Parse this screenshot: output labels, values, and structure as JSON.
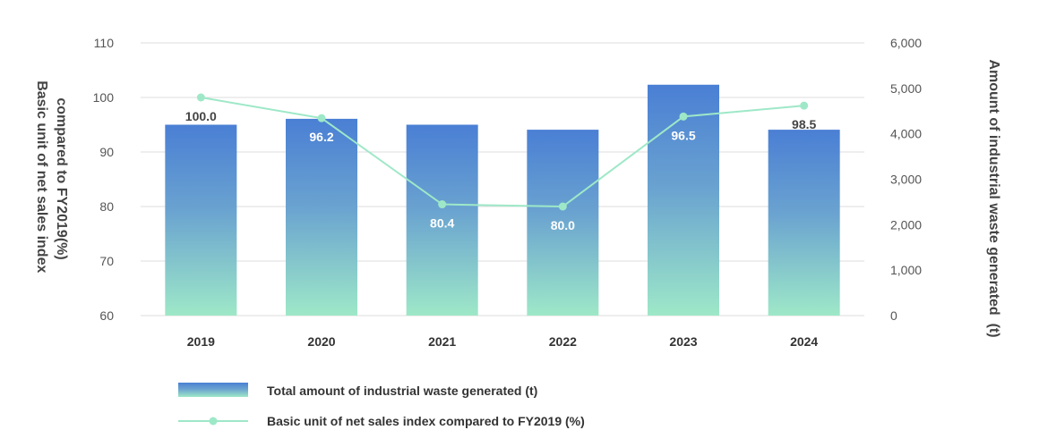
{
  "chart_data": {
    "type": "bar",
    "categories": [
      "2019",
      "2020",
      "2021",
      "2022",
      "2023",
      "2024"
    ],
    "series": [
      {
        "name": "Total amount of industrial waste generated (t)",
        "kind": "bar",
        "axis": "right",
        "values": [
          4200,
          4330,
          4200,
          4090,
          5080,
          4090
        ],
        "color_top": "#4a7fd4",
        "color_bottom": "#9ee8c8"
      },
      {
        "name": "Basic unit of net sales index compared to FY2019 (%)",
        "kind": "line",
        "axis": "left",
        "values": [
          100.0,
          96.2,
          80.4,
          80.0,
          96.5,
          98.5
        ],
        "labels": [
          "100.0",
          "96.2",
          "80.4",
          "80.0",
          "96.5",
          "98.5"
        ],
        "color": "#9ee8c8"
      }
    ],
    "y_left": {
      "label": "Basic unit of net sales index compared to FY2019(%)",
      "label_lines": [
        "Basic unit of net sales index",
        "compared to FY2019(%)"
      ],
      "lim": [
        60,
        110
      ],
      "ticks": [
        "60",
        "70",
        "80",
        "90",
        "100",
        "110"
      ]
    },
    "y_right": {
      "label": "Amount of industrial waste generated  (t)",
      "lim": [
        0,
        6000
      ],
      "ticks": [
        "0",
        "1,000",
        "2,000",
        "3,000",
        "4,000",
        "5,000",
        "6,000"
      ]
    },
    "grid": true,
    "legend_position": "bottom-left"
  }
}
